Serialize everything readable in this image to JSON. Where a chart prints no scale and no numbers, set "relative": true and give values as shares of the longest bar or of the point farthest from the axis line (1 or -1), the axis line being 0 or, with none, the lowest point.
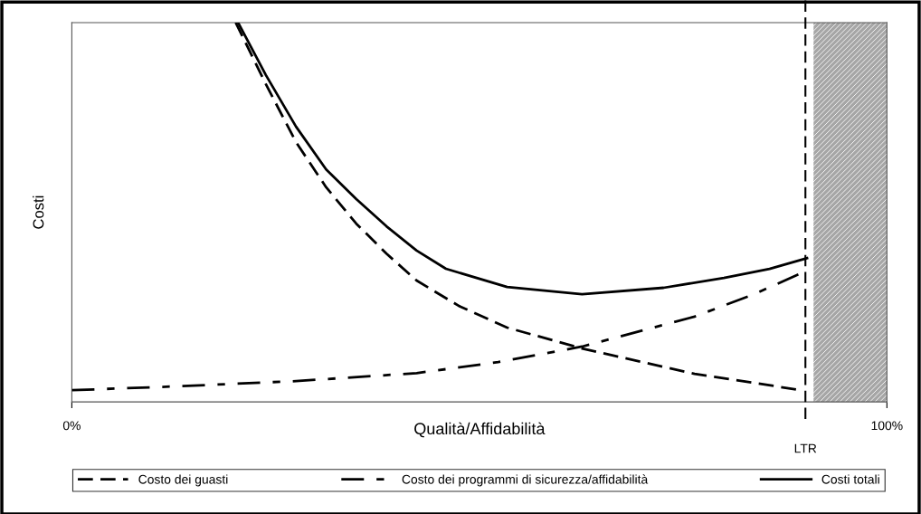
{
  "chart_data": {
    "type": "line",
    "relative": true,
    "xlabel": "Qualità/Affidabilità",
    "ylabel": "Costi",
    "xlim": [
      0,
      100
    ],
    "xticks": [
      {
        "value": 0,
        "label": "0%"
      },
      {
        "value": 100,
        "label": "100%"
      }
    ],
    "grid": false,
    "legend": "bottom",
    "marker": "none",
    "series": [
      {
        "name": "Costo dei guasti",
        "color": "#000000",
        "line_style": "dashed",
        "x": [
          20.1,
          23.8,
          27.5,
          31.2,
          34.9,
          38.6,
          42.3,
          47.5,
          53.4,
          62.6,
          76.4,
          88.9
        ],
        "values": [
          1.0,
          0.838,
          0.685,
          0.566,
          0.47,
          0.391,
          0.32,
          0.253,
          0.196,
          0.141,
          0.074,
          0.033
        ]
      },
      {
        "name": "Costo dei programmi di sicurezza/affidabilità",
        "color": "#000000",
        "line_style": "dashdot",
        "x": [
          0,
          12.7,
          27.5,
          42.3,
          52.3,
          62.6,
          76.4,
          83.7,
          89.2
        ],
        "values": [
          0.031,
          0.041,
          0.055,
          0.076,
          0.105,
          0.146,
          0.225,
          0.284,
          0.337
        ]
      },
      {
        "name": "Costi totali",
        "color": "#000000",
        "line_style": "solid",
        "x": [
          20.4,
          23.8,
          27.5,
          31.2,
          34.9,
          38.6,
          42.3,
          45.9,
          53.4,
          62.6,
          72.6,
          80.0,
          85.6,
          90.2
        ],
        "values": [
          1.0,
          0.862,
          0.726,
          0.613,
          0.535,
          0.463,
          0.399,
          0.351,
          0.303,
          0.284,
          0.301,
          0.327,
          0.351,
          0.379
        ]
      }
    ],
    "ref_lines": [
      {
        "axis": "x",
        "value": 90,
        "label": "LTR",
        "color": "#000000",
        "line_style": "dashed"
      }
    ],
    "bands": [
      {
        "axis": "x",
        "from": 91,
        "to": 100,
        "color": "#a6a6a6"
      }
    ]
  }
}
